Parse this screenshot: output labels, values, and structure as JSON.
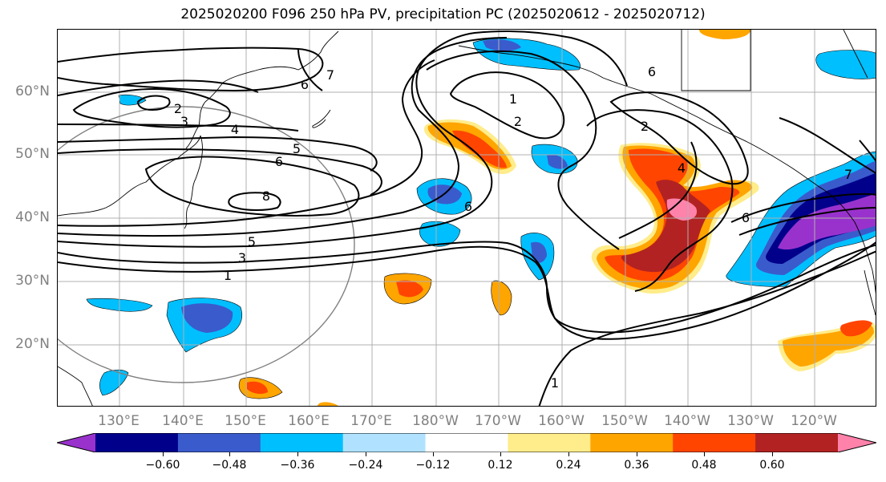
{
  "title": "2025020200 F096 250 hPa PV, precipitation PC (2025020612 - 2025020712)",
  "latitude_labels": [
    "60°N",
    "50°N",
    "40°N",
    "30°N",
    "20°N"
  ],
  "longitude_labels": [
    "130°E",
    "140°E",
    "150°E",
    "160°E",
    "170°E",
    "180°W",
    "170°W",
    "160°W",
    "150°W",
    "140°W",
    "130°W",
    "120°W"
  ],
  "contour_labels": [
    "7",
    "6",
    "2",
    "3",
    "4",
    "5",
    "6",
    "8",
    "5",
    "3",
    "1",
    "1",
    "2",
    "6",
    "2",
    "4",
    "6",
    "7",
    "1",
    "6"
  ],
  "colorbar": {
    "tick_labels": [
      "−0.60",
      "−0.48",
      "−0.36",
      "−0.24",
      "−0.12",
      "0.12",
      "0.24",
      "0.36",
      "0.48",
      "0.60"
    ],
    "colors": [
      "#9932CC",
      "#00008B",
      "#3A5BCC",
      "#00BFFF",
      "#B0E2FF",
      "#FFFFFF",
      "#FFEC8B",
      "#FFA500",
      "#FF4500",
      "#B22222",
      "#FF82AB"
    ]
  },
  "colors": {
    "contour": "#000000",
    "coastline": "#000000",
    "gridline": "#b0b0b0",
    "circle": "#808080",
    "axis_label": "#808080"
  }
}
